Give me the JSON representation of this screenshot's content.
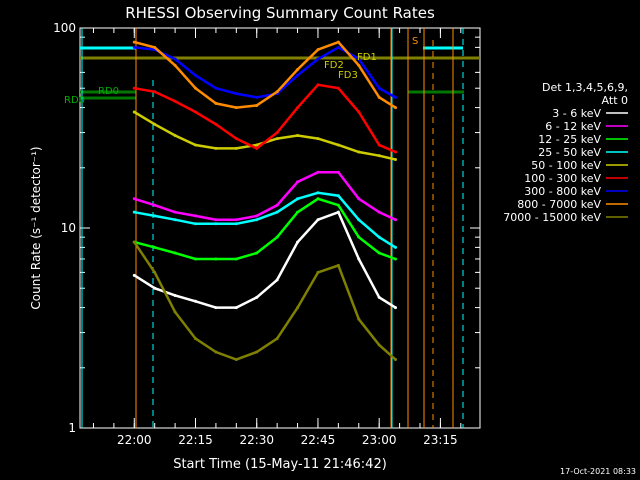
{
  "chart_data": {
    "type": "line",
    "title": "RHESSI Observing Summary Count Rates",
    "xlabel": "Start Time (15-May-11 21:46:42)",
    "ylabel": "Count Rate (s⁻¹ detector⁻¹)",
    "yscale": "log",
    "ylim": [
      1,
      100
    ],
    "xlim_minutes_from_start": [
      0,
      98
    ],
    "x_ticks": [
      "22:00",
      "22:15",
      "22:30",
      "22:45",
      "23:00",
      "23:15"
    ],
    "y_ticks": [
      "1",
      "10",
      "100"
    ],
    "legend_title_1": "Det 1,3,4,5,6,9,",
    "legend_title_2": "Att 0",
    "timestamp": "17-Oct-2021 08:33",
    "annotations": {
      "fd1": "FD1",
      "fd2": "FD2",
      "fd3": "FD3",
      "rd0_a": "RD0",
      "rd0_b": "RD0",
      "s": "S"
    },
    "time_labels": [
      "22:00",
      "22:15",
      "22:30",
      "22:45",
      "23:00",
      "23:15"
    ],
    "series": [
      {
        "name": "3 - 6 keV",
        "color": "#ffffff",
        "t": [
          "22:00",
          "22:05",
          "22:10",
          "22:15",
          "22:20",
          "22:25",
          "22:30",
          "22:35",
          "22:40",
          "22:45",
          "22:50",
          "22:55",
          "23:00",
          "23:04"
        ],
        "values": [
          5.8,
          5.0,
          4.6,
          4.3,
          4.0,
          4.0,
          4.5,
          5.5,
          8.5,
          11,
          12,
          7,
          4.5,
          4.0
        ]
      },
      {
        "name": "6 - 12 keV",
        "color": "#ff00ff",
        "t": [
          "22:00",
          "22:05",
          "22:10",
          "22:15",
          "22:20",
          "22:25",
          "22:30",
          "22:35",
          "22:40",
          "22:45",
          "22:50",
          "22:55",
          "23:00",
          "23:04"
        ],
        "values": [
          14,
          13,
          12,
          11.5,
          11,
          11,
          11.5,
          13,
          17,
          19,
          19,
          14,
          12,
          11
        ]
      },
      {
        "name": "12 - 25 keV",
        "color": "#00ff00",
        "t": [
          "22:00",
          "22:05",
          "22:10",
          "22:15",
          "22:20",
          "22:25",
          "22:30",
          "22:35",
          "22:40",
          "22:45",
          "22:50",
          "22:55",
          "23:00",
          "23:04"
        ],
        "values": [
          8.5,
          8.0,
          7.5,
          7.0,
          7.0,
          7.0,
          7.5,
          9,
          12,
          14,
          13,
          9,
          7.5,
          7.0
        ]
      },
      {
        "name": "25 - 50 keV",
        "color": "#00ffff",
        "t": [
          "22:00",
          "22:05",
          "22:10",
          "22:15",
          "22:20",
          "22:25",
          "22:30",
          "22:35",
          "22:40",
          "22:45",
          "22:50",
          "22:55",
          "23:00",
          "23:04"
        ],
        "values": [
          12,
          11.5,
          11,
          10.5,
          10.5,
          10.5,
          11,
          12,
          14,
          15,
          14.5,
          11,
          9,
          8
        ]
      },
      {
        "name": "50 - 100 keV",
        "color": "#cccc00",
        "t": [
          "22:00",
          "22:05",
          "22:10",
          "22:15",
          "22:20",
          "22:25",
          "22:30",
          "22:35",
          "22:40",
          "22:45",
          "22:50",
          "22:55",
          "23:00",
          "23:04"
        ],
        "values": [
          38,
          33,
          29,
          26,
          25,
          25,
          26,
          28,
          29,
          28,
          26,
          24,
          23,
          22
        ]
      },
      {
        "name": "100 - 300 keV",
        "color": "#ff0000",
        "t": [
          "22:00",
          "22:05",
          "22:10",
          "22:15",
          "22:20",
          "22:25",
          "22:30",
          "22:35",
          "22:40",
          "22:45",
          "22:50",
          "22:55",
          "23:00",
          "23:04"
        ],
        "values": [
          50,
          48,
          43,
          38,
          33,
          28,
          25,
          30,
          40,
          52,
          50,
          38,
          26,
          24
        ]
      },
      {
        "name": "300 - 800 keV",
        "color": "#0000ff",
        "t": [
          "22:00",
          "22:05",
          "22:10",
          "22:15",
          "22:20",
          "22:25",
          "22:30",
          "22:35",
          "22:40",
          "22:45",
          "22:50",
          "22:55",
          "23:00",
          "23:04"
        ],
        "values": [
          80,
          78,
          70,
          58,
          50,
          47,
          45,
          47,
          58,
          70,
          80,
          70,
          50,
          45
        ]
      },
      {
        "name": "800 - 7000 keV",
        "color": "#ff8c00",
        "t": [
          "22:00",
          "22:05",
          "22:10",
          "22:15",
          "22:20",
          "22:25",
          "22:30",
          "22:35",
          "22:40",
          "22:45",
          "22:50",
          "22:55",
          "23:00",
          "23:04"
        ],
        "values": [
          85,
          80,
          65,
          50,
          42,
          40,
          41,
          48,
          62,
          78,
          85,
          65,
          45,
          40
        ]
      },
      {
        "name": "7000 - 15000 keV",
        "color": "#808000",
        "t": [
          "22:00",
          "22:05",
          "22:10",
          "22:15",
          "22:20",
          "22:25",
          "22:30",
          "22:35",
          "22:40",
          "22:45",
          "22:50",
          "22:55",
          "23:00",
          "23:04"
        ],
        "values": [
          8.5,
          6.0,
          3.8,
          2.8,
          2.4,
          2.2,
          2.4,
          2.8,
          4.0,
          6.0,
          6.5,
          3.5,
          2.6,
          2.2
        ]
      }
    ]
  }
}
